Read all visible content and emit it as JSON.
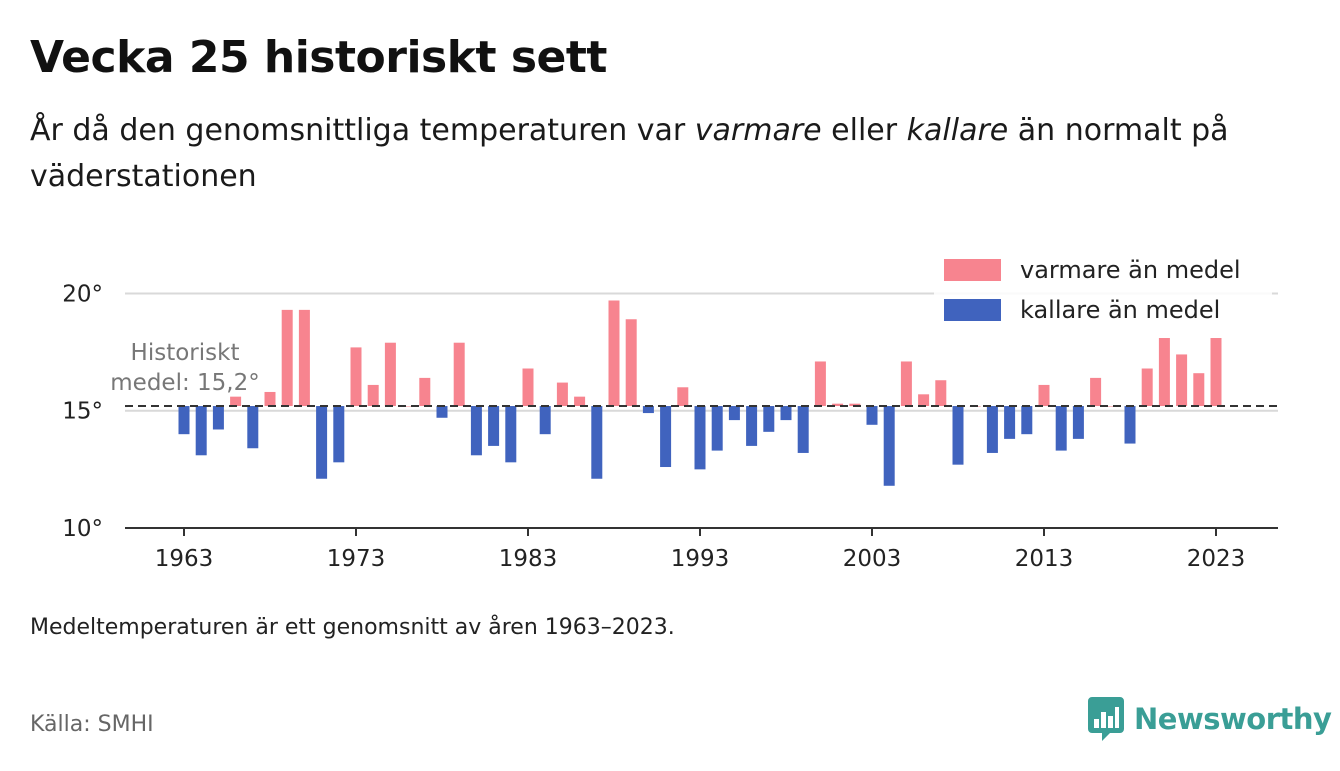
{
  "title": "Vecka 25 historiskt sett",
  "subtitle": {
    "part1": "År då den genomsnittliga temperaturen var ",
    "warm_word": "varmare",
    "part2": " eller ",
    "cold_word": "kallare",
    "part3": " än normalt på väderstationen"
  },
  "note": "Medeltemperaturen är ett genomsnitt av åren 1963–2023.",
  "source": "Källa: SMHI",
  "logo_text": "Newsworthy",
  "colors": {
    "warm": "#f7848f",
    "cold": "#4063be",
    "baseline": "#333333",
    "brand": "#3a9e96"
  },
  "chart_data": {
    "type": "bar",
    "x": [
      1963,
      1964,
      1965,
      1966,
      1967,
      1968,
      1969,
      1970,
      1971,
      1972,
      1973,
      1974,
      1975,
      1976,
      1977,
      1978,
      1979,
      1980,
      1981,
      1982,
      1983,
      1984,
      1985,
      1986,
      1987,
      1988,
      1989,
      1990,
      1991,
      1992,
      1993,
      1994,
      1995,
      1996,
      1997,
      1998,
      1999,
      2000,
      2001,
      2002,
      2003,
      2004,
      2005,
      2006,
      2007,
      2008,
      2009,
      2010,
      2011,
      2012,
      2013,
      2014,
      2015,
      2016,
      2017,
      2018,
      2019,
      2020,
      2021,
      2022,
      2023
    ],
    "values": [
      14.0,
      13.1,
      14.2,
      15.6,
      13.4,
      15.8,
      19.3,
      19.3,
      12.1,
      12.8,
      17.7,
      16.1,
      17.9,
      15.2,
      16.4,
      14.7,
      17.9,
      13.1,
      13.5,
      12.8,
      16.8,
      14.0,
      16.2,
      15.6,
      12.1,
      19.7,
      18.9,
      14.9,
      12.6,
      16.0,
      12.5,
      13.3,
      14.6,
      13.5,
      14.1,
      14.6,
      13.2,
      17.1,
      15.3,
      15.3,
      14.4,
      11.8,
      17.1,
      15.7,
      16.3,
      12.7,
      15.2,
      13.2,
      13.8,
      14.0,
      16.1,
      13.3,
      13.8,
      16.4,
      15.2,
      13.6,
      16.8,
      18.1,
      17.4,
      16.6,
      18.1
    ],
    "baseline": 15.2,
    "baseline_label_line1": "Historiskt",
    "baseline_label_line2": "medel: 15,2°",
    "ylim": [
      10,
      21
    ],
    "yticks": [
      10,
      15,
      20
    ],
    "ytick_labels": [
      "10°",
      "15°",
      "20°"
    ],
    "xticks": [
      1963,
      1973,
      1983,
      1993,
      2003,
      2013,
      2023
    ],
    "xtick_labels": [
      "1963",
      "1973",
      "1983",
      "1993",
      "2003",
      "2013",
      "2023"
    ],
    "legend": {
      "position": "top-right",
      "warm_label": "varmare än medel",
      "cold_label": "kallare än medel"
    },
    "grid": true
  }
}
